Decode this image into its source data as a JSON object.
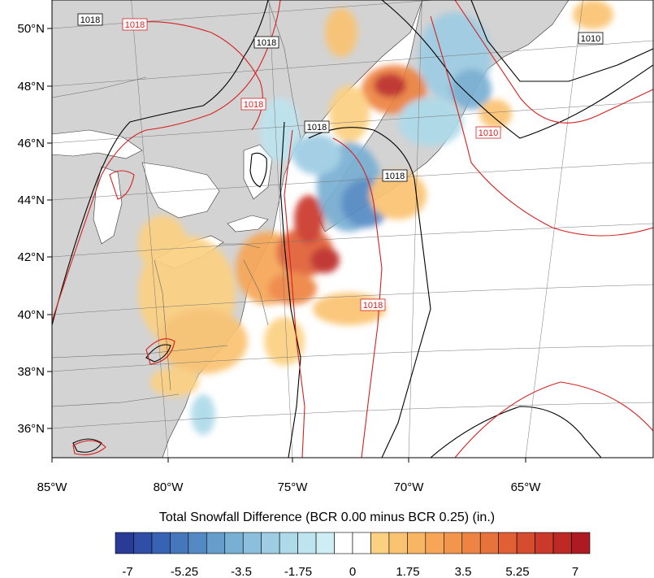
{
  "map": {
    "lat_labels": [
      "50°N",
      "48°N",
      "46°N",
      "44°N",
      "42°N",
      "40°N",
      "38°N",
      "36°N"
    ],
    "lon_labels": [
      "85°W",
      "80°W",
      "75°W",
      "70°W",
      "65°W"
    ],
    "contour_labels": [
      {
        "text": "1018",
        "color": "#000000"
      },
      {
        "text": "1018",
        "color": "#d62020"
      },
      {
        "text": "1018",
        "color": "#000000"
      },
      {
        "text": "1018",
        "color": "#d62020"
      },
      {
        "text": "1018",
        "color": "#000000"
      },
      {
        "text": "1018",
        "color": "#000000"
      },
      {
        "text": "1018",
        "color": "#d62020"
      },
      {
        "text": "1010",
        "color": "#000000"
      },
      {
        "text": "1010",
        "color": "#d62020"
      }
    ],
    "land_color": "#d3d3d3",
    "water_color": "#ffffff"
  },
  "colorbar": {
    "title": "Total Snowfall Difference (BCR 0.00 minus BCR 0.25)  (in.)",
    "tick_labels": [
      "-7",
      "-5.25",
      "-3.5",
      "-1.75",
      "0",
      "1.75",
      "3.5",
      "5.25",
      "7"
    ],
    "colors": [
      "#2a3a97",
      "#2f4ea6",
      "#3862b3",
      "#4676bb",
      "#548ac4",
      "#659dcb",
      "#78afd3",
      "#8bbfdb",
      "#9dcce3",
      "#addae9",
      "#bde4ef",
      "#cdeef5",
      "#ffffff",
      "#ffffff",
      "#fcd081",
      "#fac371",
      "#f8b563",
      "#f6a656",
      "#f2964c",
      "#ee8443",
      "#e8723b",
      "#e05f34",
      "#d64c2e",
      "#ca3929",
      "#bd2925",
      "#ae1a22"
    ]
  }
}
